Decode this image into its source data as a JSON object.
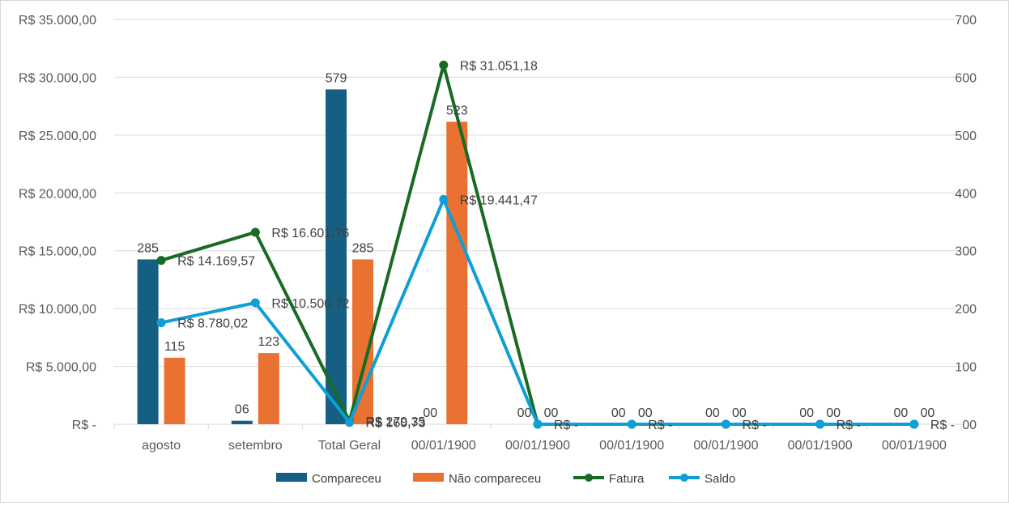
{
  "chart_data": {
    "type": "bar",
    "combo": "clustered bar (secondary axis) + line (primary axis)",
    "title": "",
    "categories": [
      "agosto",
      "setembro",
      "Total Geral",
      "00/01/1900",
      "00/01/1900",
      "00/01/1900",
      "00/01/1900",
      "00/01/1900",
      "00/01/1900"
    ],
    "left_axis": {
      "min": 0,
      "max": 35000,
      "ticks": [
        "R$ -",
        "R$ 5.000,00",
        "R$ 10.000,00",
        "R$ 15.000,00",
        "R$ 20.000,00",
        "R$ 25.000,00",
        "R$ 30.000,00",
        "R$ 35.000,00"
      ]
    },
    "right_axis": {
      "min": 0,
      "max": 700,
      "ticks": [
        "00",
        "100",
        "200",
        "300",
        "400",
        "500",
        "600",
        "700"
      ]
    },
    "grid": true,
    "legend_position": "bottom",
    "bar_series": [
      {
        "name": "Compareceu",
        "color": "#156082",
        "axis": "right",
        "values": [
          285,
          6,
          579,
          0,
          0,
          0,
          0,
          0,
          0
        ],
        "labels": [
          "285",
          "06",
          "579",
          "00",
          "00",
          "00",
          "00",
          "00",
          "00"
        ]
      },
      {
        "name": "Não compareceu",
        "color": "#E97132",
        "axis": "right",
        "values": [
          115,
          123,
          285,
          523,
          0,
          0,
          0,
          0,
          0
        ],
        "labels": [
          "115",
          "123",
          "285",
          "523",
          "00",
          "00",
          "00",
          "00",
          "00"
        ]
      }
    ],
    "line_series": [
      {
        "name": "Fatura",
        "color": "#196B24",
        "axis": "left",
        "values": [
          14169.57,
          16601.76,
          279.35,
          31051.18,
          0,
          0,
          0,
          0,
          0
        ],
        "labels": [
          "R$ 14.169,57",
          "R$ 16.601,76",
          "R$ 279,35",
          "R$ 31.051,18",
          "R$ -",
          "R$ -",
          "R$ -",
          "R$ -",
          "R$ -"
        ]
      },
      {
        "name": "Saldo",
        "color": "#0F9ED5",
        "axis": "left",
        "values": [
          8780.02,
          10500.72,
          160.73,
          19441.47,
          0,
          0,
          0,
          0,
          0
        ],
        "labels": [
          "R$ 8.780,02",
          "R$ 10.500,72",
          "R$ 160,73",
          "R$ 19.441,47",
          "",
          "",
          "",
          "",
          ""
        ]
      }
    ]
  }
}
